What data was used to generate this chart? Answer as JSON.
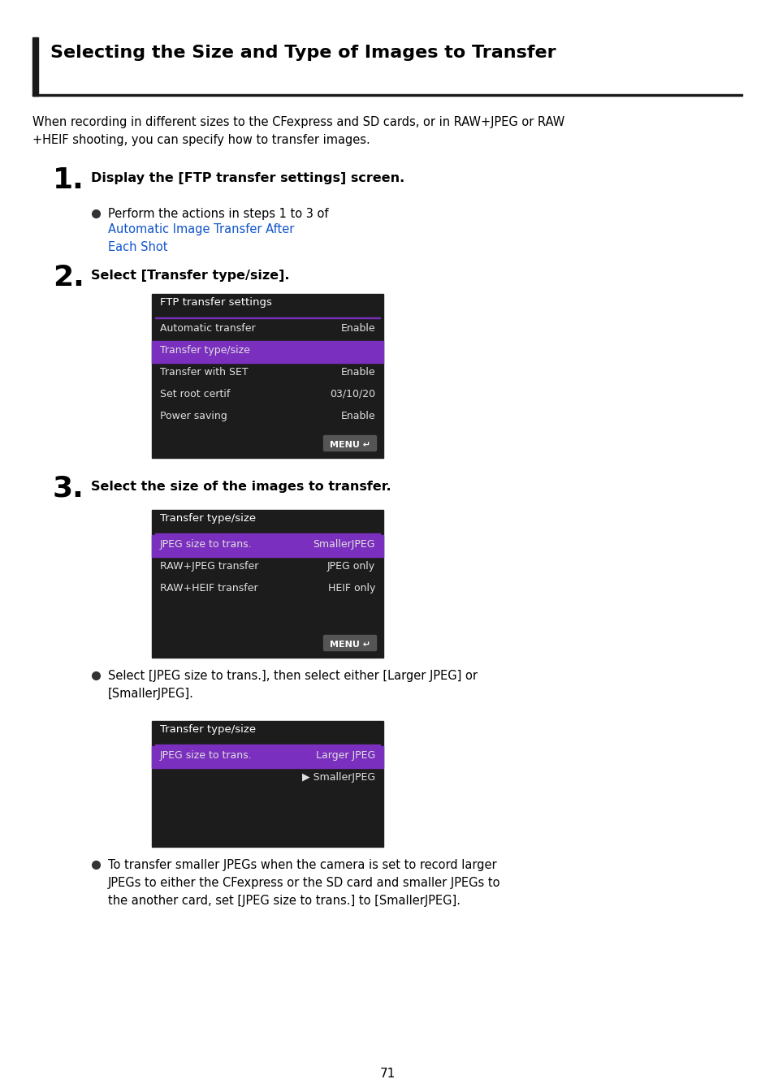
{
  "page_bg": "#ffffff",
  "title": "Selecting the Size and Type of Images to Transfer",
  "title_fontsize": 16,
  "title_bar_color": "#1a1a1a",
  "body_text_color": "#000000",
  "intro_text": "When recording in different sizes to the CFexpress and SD cards, or in RAW+JPEG or RAW\n+HEIF shooting, you can specify how to transfer images.",
  "step1_num": "1.",
  "step1_text": "Display the [FTP transfer settings] screen.",
  "step2_num": "2.",
  "step2_text": "Select [Transfer type/size].",
  "step3_num": "3.",
  "step3_text": "Select the size of the images to transfer.",
  "screen_bg": "#1c1c1c",
  "screen_highlight": "#7b2fbe",
  "screen_title_color": "#ffffff",
  "screen_text_color": "#e0e0e0",
  "menu_btn_bg": "#555555",
  "menu_btn_text": "#ffffff",
  "screen1_title": "FTP transfer settings",
  "screen1_rows": [
    [
      "Automatic transfer",
      "Enable",
      false
    ],
    [
      "Transfer type/size",
      "",
      true
    ],
    [
      "Transfer with SET",
      "Enable",
      false
    ],
    [
      "Set root certif",
      "03/10/20",
      false
    ],
    [
      "Power saving",
      "Enable",
      false
    ]
  ],
  "screen2_title": "Transfer type/size",
  "screen2_rows": [
    [
      "JPEG size to trans.",
      "SmallerJPEG",
      true
    ],
    [
      "RAW+JPEG transfer",
      "JPEG only",
      false
    ],
    [
      "RAW+HEIF transfer",
      "HEIF only",
      false
    ]
  ],
  "screen3_title": "Transfer type/size",
  "page_num": "71",
  "link_color": "#1155cc"
}
